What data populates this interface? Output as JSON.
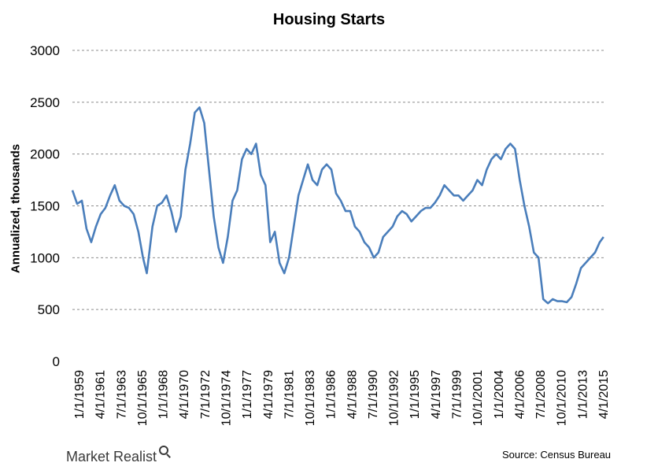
{
  "chart_data": {
    "type": "line",
    "title": "Housing Starts",
    "xlabel": "",
    "ylabel": "Annualized, thousands",
    "ylim": [
      0,
      3000
    ],
    "y_ticks": [
      0,
      500,
      1000,
      1500,
      2000,
      2500,
      3000
    ],
    "x_tick_labels": [
      "1/1/1959",
      "4/1/1961",
      "7/1/1963",
      "10/1/1965",
      "1/1/1968",
      "4/1/1970",
      "7/1/1972",
      "10/1/1974",
      "1/1/1977",
      "4/1/1979",
      "7/1/1981",
      "10/1/1983",
      "1/1/1986",
      "4/1/1988",
      "7/1/1990",
      "10/1/1992",
      "1/1/1995",
      "4/1/1997",
      "7/1/1999",
      "10/1/2001",
      "1/1/2004",
      "4/1/2006",
      "7/1/2008",
      "10/1/2010",
      "1/1/2013",
      "4/1/2015"
    ],
    "grid": true,
    "legend": "none",
    "line_color": "#4a7ebb",
    "series": [
      {
        "x": [
          1959.0,
          1959.5,
          1960.0,
          1960.5,
          1961.0,
          1961.5,
          1962.0,
          1962.5,
          1963.0,
          1963.5,
          1964.0,
          1964.5,
          1965.0,
          1965.5,
          1966.0,
          1966.5,
          1966.9,
          1967.5,
          1968.0,
          1968.5,
          1969.0,
          1969.5,
          1970.0,
          1970.5,
          1971.0,
          1971.5,
          1972.0,
          1972.5,
          1973.0,
          1973.5,
          1974.0,
          1974.5,
          1975.0,
          1975.5,
          1976.0,
          1976.5,
          1977.0,
          1977.5,
          1978.0,
          1978.5,
          1979.0,
          1979.5,
          1980.0,
          1980.5,
          1981.0,
          1981.5,
          1982.0,
          1982.5,
          1983.0,
          1983.5,
          1984.0,
          1984.5,
          1985.0,
          1985.5,
          1986.0,
          1986.5,
          1987.0,
          1987.5,
          1988.0,
          1988.5,
          1989.0,
          1989.5,
          1990.0,
          1990.5,
          1991.0,
          1991.5,
          1992.0,
          1992.5,
          1993.0,
          1993.5,
          1994.0,
          1994.5,
          1995.0,
          1995.5,
          1996.0,
          1996.5,
          1997.0,
          1997.5,
          1998.0,
          1998.5,
          1999.0,
          1999.5,
          2000.0,
          2000.5,
          2001.0,
          2001.5,
          2002.0,
          2002.5,
          2003.0,
          2003.5,
          2004.0,
          2004.5,
          2005.0,
          2005.5,
          2006.0,
          2006.5,
          2007.0,
          2007.5,
          2008.0,
          2008.5,
          2009.0,
          2009.5,
          2010.0,
          2010.5,
          2011.0,
          2011.5,
          2012.0,
          2012.5,
          2013.0,
          2013.5,
          2014.0,
          2014.5,
          2015.0,
          2015.4
        ],
        "values": [
          1650,
          1520,
          1550,
          1280,
          1150,
          1300,
          1420,
          1480,
          1600,
          1700,
          1550,
          1500,
          1480,
          1420,
          1250,
          1000,
          850,
          1300,
          1500,
          1530,
          1600,
          1450,
          1250,
          1400,
          1850,
          2100,
          2400,
          2450,
          2300,
          1850,
          1400,
          1100,
          950,
          1200,
          1550,
          1650,
          1950,
          2050,
          2000,
          2100,
          1800,
          1700,
          1150,
          1250,
          950,
          850,
          1000,
          1300,
          1600,
          1750,
          1900,
          1750,
          1700,
          1850,
          1900,
          1850,
          1620,
          1550,
          1450,
          1450,
          1300,
          1250,
          1150,
          1100,
          1000,
          1050,
          1200,
          1250,
          1300,
          1400,
          1450,
          1420,
          1350,
          1400,
          1450,
          1480,
          1480,
          1530,
          1600,
          1700,
          1650,
          1600,
          1600,
          1550,
          1600,
          1650,
          1750,
          1700,
          1850,
          1950,
          2000,
          1950,
          2050,
          2100,
          2050,
          1750,
          1500,
          1300,
          1050,
          1000,
          600,
          560,
          600,
          580,
          580,
          570,
          620,
          750,
          900,
          950,
          1000,
          1050,
          1150,
          1200
        ]
      }
    ]
  },
  "footer": {
    "logo_text": "Market Realist",
    "source": "Source: Census Bureau"
  }
}
